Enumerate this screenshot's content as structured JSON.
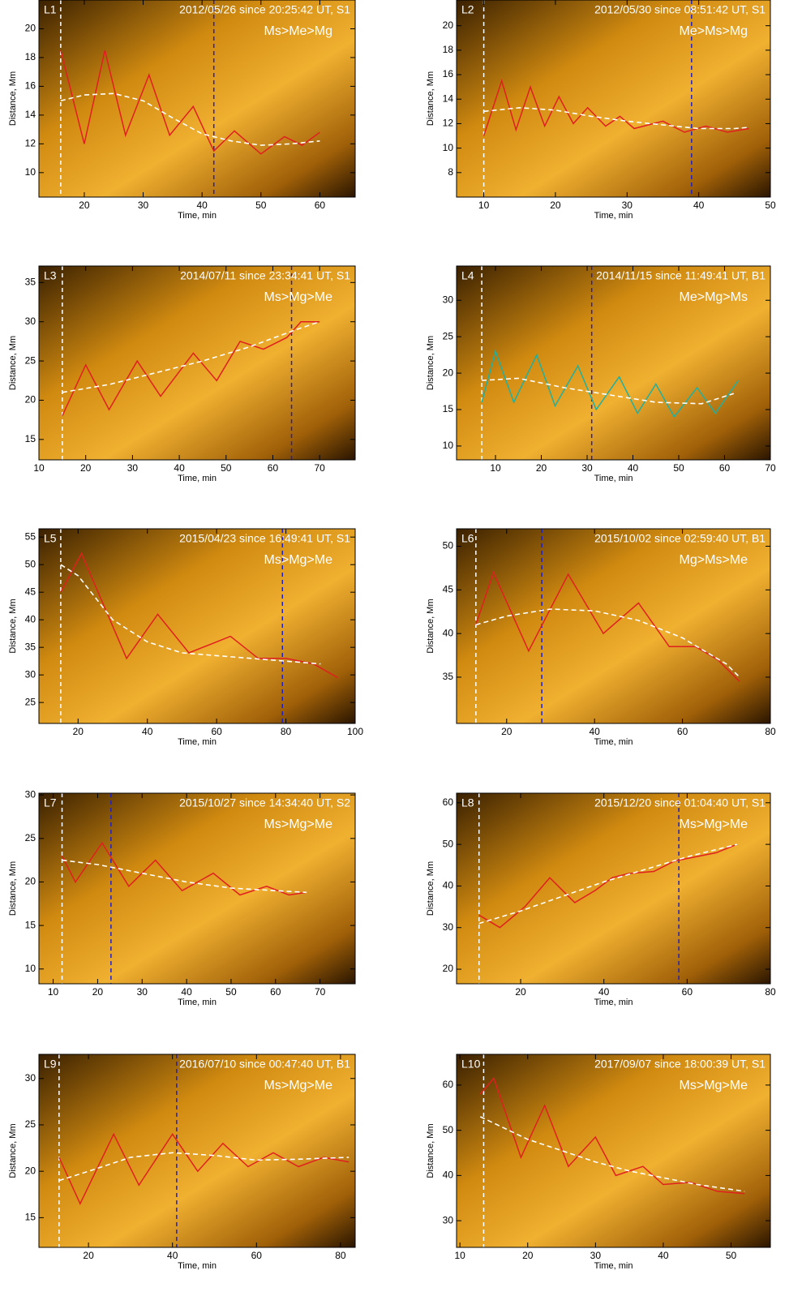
{
  "chart_data": [
    {
      "type": "line",
      "label": "L1",
      "title": "2012/05/26 since 20:25:42 UT, S1",
      "subtitle": "Ms>Me>Mg",
      "xlabel": "Time, min",
      "ylabel": "Distance, Mm",
      "xlim": [
        12.3,
        66
      ],
      "ylim": [
        8.3,
        22
      ],
      "xticks": [
        20,
        30,
        40,
        50,
        60
      ],
      "yticks": [
        10,
        12,
        14,
        16,
        18,
        20
      ],
      "series": [
        {
          "color": "#e02020",
          "x": [
            16,
            20,
            23.5,
            27,
            31,
            34.5,
            38.5,
            42,
            45.5,
            50,
            54,
            57,
            60
          ],
          "values": [
            18.5,
            12,
            18.5,
            12.6,
            16.8,
            12.6,
            14.6,
            11.5,
            12.9,
            11.3,
            12.5,
            11.9,
            12.8
          ]
        },
        {
          "color": "#ffffff",
          "dash": true,
          "x": [
            16,
            20,
            25,
            30,
            35,
            40,
            45,
            50,
            55,
            60
          ],
          "values": [
            15,
            15.4,
            15.5,
            15,
            13.8,
            12.7,
            12.2,
            11.9,
            12,
            12.2
          ]
        }
      ],
      "vlines": [
        {
          "value": 16,
          "color": "#ffffff"
        },
        {
          "value": 42,
          "color": "#2020c0"
        }
      ]
    },
    {
      "type": "line",
      "label": "L2",
      "title": "2012/05/30 since 08:51:42 UT, S1",
      "subtitle": "Me>Ms>Mg",
      "xlabel": "Time, min",
      "ylabel": "Distance, Mm",
      "xlim": [
        6.2,
        50
      ],
      "ylim": [
        6,
        22.1
      ],
      "xticks": [
        10,
        20,
        30,
        40,
        50
      ],
      "yticks": [
        8,
        10,
        12,
        14,
        16,
        18,
        20
      ],
      "series": [
        {
          "color": "#e02020",
          "x": [
            10,
            12.5,
            14.5,
            16.5,
            18.5,
            20.5,
            22.5,
            24.5,
            27,
            29,
            31,
            35,
            38,
            41,
            44,
            47
          ],
          "values": [
            11,
            15.5,
            11.5,
            15,
            11.8,
            14.2,
            12,
            13.3,
            11.8,
            12.6,
            11.6,
            12.2,
            11.3,
            11.8,
            11.3,
            11.6
          ]
        },
        {
          "color": "#ffffff",
          "dash": true,
          "x": [
            10,
            15,
            20,
            25,
            30,
            35,
            40,
            45,
            47
          ],
          "values": [
            13,
            13.3,
            13.1,
            12.6,
            12.2,
            11.9,
            11.6,
            11.6,
            11.7
          ]
        }
      ],
      "vlines": [
        {
          "value": 10,
          "color": "#ffffff"
        },
        {
          "value": 39,
          "color": "#2020c0"
        }
      ]
    },
    {
      "type": "line",
      "label": "L3",
      "title": "2014/07/11 since 23:34:41 UT, S1",
      "subtitle": "Ms>Mg>Me",
      "xlabel": "Time, min",
      "ylabel": "Distance, Mm",
      "xlim": [
        10,
        77.6
      ],
      "ylim": [
        12.4,
        37.1
      ],
      "xticks": [
        10,
        20,
        30,
        40,
        50,
        60,
        70
      ],
      "yticks": [
        15,
        20,
        25,
        30,
        35
      ],
      "series": [
        {
          "color": "#e02020",
          "x": [
            15,
            20,
            25,
            31,
            36,
            43,
            48,
            53,
            58,
            63,
            66,
            70
          ],
          "values": [
            18,
            24.5,
            18.8,
            25,
            20.5,
            26,
            22.5,
            27.5,
            26.5,
            28,
            30,
            30
          ]
        },
        {
          "color": "#ffffff",
          "dash": true,
          "x": [
            15,
            25,
            35,
            45,
            55,
            65,
            70
          ],
          "values": [
            21,
            22,
            23.5,
            25,
            26.8,
            29,
            30
          ]
        }
      ],
      "vlines": [
        {
          "value": 15,
          "color": "#ffffff"
        },
        {
          "value": 64,
          "color": "#2020c0"
        }
      ]
    },
    {
      "type": "line",
      "label": "L4",
      "title": "2014/11/15 since 11:49:41 UT, B1",
      "subtitle": "Me>Mg>Ms",
      "xlabel": "Time, min",
      "ylabel": "Distance, Mm",
      "xlim": [
        1.5,
        70
      ],
      "ylim": [
        8.1,
        34.7
      ],
      "xticks": [
        10,
        20,
        30,
        40,
        50,
        60,
        70
      ],
      "yticks": [
        10,
        15,
        20,
        25,
        30
      ],
      "series": [
        {
          "color": "#20b0a0",
          "x": [
            7,
            10,
            14,
            19,
            23,
            28,
            32,
            37,
            41,
            45,
            49,
            54,
            58,
            63
          ],
          "values": [
            16,
            23,
            16,
            22.5,
            15.5,
            21,
            15,
            19.5,
            14.5,
            18.5,
            14,
            18,
            14.5,
            19
          ]
        },
        {
          "color": "#ffffff",
          "dash": true,
          "x": [
            7,
            15,
            25,
            35,
            45,
            55,
            62
          ],
          "values": [
            19,
            19.3,
            18,
            17,
            16,
            15.8,
            17.2
          ]
        }
      ],
      "vlines": [
        {
          "value": 7,
          "color": "#ffffff"
        },
        {
          "value": 31,
          "color": "#2020c0"
        }
      ]
    },
    {
      "type": "line",
      "label": "L5",
      "title": "2015/04/23 since 16:49:41 UT, S1",
      "subtitle": "Ms>Mg>Me",
      "xlabel": "Time, min",
      "ylabel": "Distance, Mm",
      "xlim": [
        8.7,
        100
      ],
      "ylim": [
        21.2,
        56.5
      ],
      "xticks": [
        20,
        40,
        60,
        80,
        100
      ],
      "yticks": [
        25,
        30,
        35,
        40,
        45,
        50,
        55
      ],
      "series": [
        {
          "color": "#e02020",
          "x": [
            15,
            21,
            34,
            43,
            52,
            64,
            72,
            80,
            88,
            95
          ],
          "values": [
            45,
            52,
            33,
            41,
            34,
            37,
            33,
            33,
            32,
            29.5
          ]
        },
        {
          "color": "#ffffff",
          "dash": true,
          "x": [
            15,
            20,
            30,
            40,
            50,
            60,
            70,
            80,
            90
          ],
          "values": [
            50,
            48,
            40,
            36,
            34,
            33.5,
            33,
            32.5,
            32
          ]
        }
      ],
      "vlines": [
        {
          "value": 15,
          "color": "#ffffff"
        },
        {
          "value": 79,
          "color": "#2020c0"
        }
      ]
    },
    {
      "type": "line",
      "label": "L6",
      "title": "2015/10/02  since 02:59:40 UT, B1",
      "subtitle": "Mg>Ms>Me",
      "xlabel": "Time, min",
      "ylabel": "Distance, Mm",
      "xlim": [
        8.6,
        80
      ],
      "ylim": [
        29.7,
        52
      ],
      "xticks": [
        20,
        40,
        60,
        80
      ],
      "yticks": [
        35,
        40,
        45,
        50
      ],
      "series": [
        {
          "color": "#e02020",
          "x": [
            13,
            17,
            25,
            34,
            42,
            50,
            57,
            63,
            68,
            73
          ],
          "values": [
            41,
            47,
            38,
            46.8,
            40,
            43.5,
            38.5,
            38.5,
            37,
            34.5
          ]
        },
        {
          "color": "#ffffff",
          "dash": true,
          "x": [
            13,
            20,
            30,
            40,
            50,
            60,
            70,
            73
          ],
          "values": [
            41,
            42,
            42.8,
            42.6,
            41.5,
            39.5,
            36.5,
            35
          ]
        }
      ],
      "vlines": [
        {
          "value": 13,
          "color": "#ffffff"
        },
        {
          "value": 28,
          "color": "#2020c0"
        }
      ]
    },
    {
      "type": "line",
      "label": "L7",
      "title": "2015/10/27 since 14:34:40 UT, S2",
      "subtitle": "Ms>Mg>Me",
      "xlabel": "Time, min",
      "ylabel": "Distance, Mm",
      "xlim": [
        6.8,
        77.9
      ],
      "ylim": [
        8.3,
        30.2
      ],
      "xticks": [
        10,
        20,
        30,
        40,
        50,
        60,
        70
      ],
      "yticks": [
        10,
        15,
        20,
        25,
        30
      ],
      "series": [
        {
          "color": "#e02020",
          "x": [
            12,
            15,
            21,
            27,
            33,
            39,
            46,
            52,
            58,
            63,
            67
          ],
          "values": [
            23,
            20,
            24.5,
            19.5,
            22.5,
            19,
            21,
            18.5,
            19.5,
            18.5,
            18.8
          ]
        },
        {
          "color": "#ffffff",
          "dash": true,
          "x": [
            12,
            20,
            30,
            40,
            50,
            60,
            67
          ],
          "values": [
            22.5,
            22,
            21,
            20,
            19.3,
            19,
            18.8
          ]
        }
      ],
      "vlines": [
        {
          "value": 12,
          "color": "#ffffff"
        },
        {
          "value": 23,
          "color": "#2020c0"
        }
      ]
    },
    {
      "type": "line",
      "label": "L8",
      "title": "2015/12/20 since 01:04:40 UT, S1",
      "subtitle": "Ms>Mg>Me",
      "xlabel": "Time, min",
      "ylabel": "Distance, Mm",
      "xlim": [
        4.6,
        80
      ],
      "ylim": [
        16.5,
        62.3
      ],
      "xticks": [
        20,
        40,
        60,
        80
      ],
      "yticks": [
        20,
        30,
        40,
        50,
        60
      ],
      "series": [
        {
          "color": "#e02020",
          "x": [
            10,
            15,
            21,
            27,
            33,
            38,
            42,
            46,
            52,
            57,
            62,
            67,
            72
          ],
          "values": [
            33,
            30,
            35,
            42,
            36,
            39,
            42,
            43,
            43.5,
            46,
            47,
            48,
            50
          ]
        },
        {
          "color": "#ffffff",
          "dash": true,
          "x": [
            10,
            20,
            30,
            40,
            50,
            60,
            72
          ],
          "values": [
            31,
            34,
            37.5,
            41,
            44,
            47,
            50
          ]
        }
      ],
      "vlines": [
        {
          "value": 10,
          "color": "#ffffff"
        },
        {
          "value": 58,
          "color": "#2020c0"
        }
      ]
    },
    {
      "type": "line",
      "label": "L9",
      "title": "2016/07/10 since 00:47:40 UT, B1",
      "subtitle": "Ms>Mg>Me",
      "xlabel": "Time, min",
      "ylabel": "Distance, Mm",
      "xlim": [
        8.2,
        83.5
      ],
      "ylim": [
        11.8,
        32.6
      ],
      "xticks": [
        20,
        40,
        60,
        80
      ],
      "yticks": [
        15,
        20,
        25,
        30
      ],
      "series": [
        {
          "color": "#e02020",
          "x": [
            13,
            18,
            26,
            32,
            40,
            46,
            52,
            58,
            64,
            70,
            76,
            82
          ],
          "values": [
            21.5,
            16.5,
            24,
            18.5,
            24,
            20,
            23,
            20.5,
            22,
            20.5,
            21.5,
            21
          ]
        },
        {
          "color": "#ffffff",
          "dash": true,
          "x": [
            13,
            20,
            30,
            40,
            50,
            60,
            70,
            82
          ],
          "values": [
            19,
            20,
            21.5,
            22,
            21.7,
            21.2,
            21.3,
            21.5
          ]
        }
      ],
      "vlines": [
        {
          "value": 13,
          "color": "#ffffff"
        },
        {
          "value": 41,
          "color": "#2020c0"
        }
      ]
    },
    {
      "type": "line",
      "label": "L10",
      "title": "2017/09/07 since 18:00:39 UT, S1",
      "subtitle": "Ms>Mg>Me",
      "xlabel": "Time, min",
      "ylabel": "Distance, Mm",
      "xlim": [
        9.5,
        55.8
      ],
      "ylim": [
        24.1,
        66.8
      ],
      "xticks": [
        10,
        20,
        30,
        40,
        50
      ],
      "yticks": [
        30,
        40,
        50,
        60
      ],
      "series": [
        {
          "color": "#e02020",
          "x": [
            13,
            15,
            19,
            22.5,
            26,
            30,
            33,
            37,
            40,
            44,
            48,
            52
          ],
          "values": [
            58,
            61.5,
            44,
            55.5,
            42,
            48.5,
            40,
            42,
            38,
            38.5,
            36.5,
            36
          ]
        },
        {
          "color": "#ffffff",
          "dash": true,
          "x": [
            13,
            20,
            25,
            30,
            35,
            40,
            45,
            52
          ],
          "values": [
            53,
            48,
            45.5,
            43,
            41,
            39.5,
            38,
            36.5
          ]
        }
      ],
      "vlines": [
        {
          "value": 13.5,
          "color": "#ffffff"
        }
      ]
    }
  ]
}
